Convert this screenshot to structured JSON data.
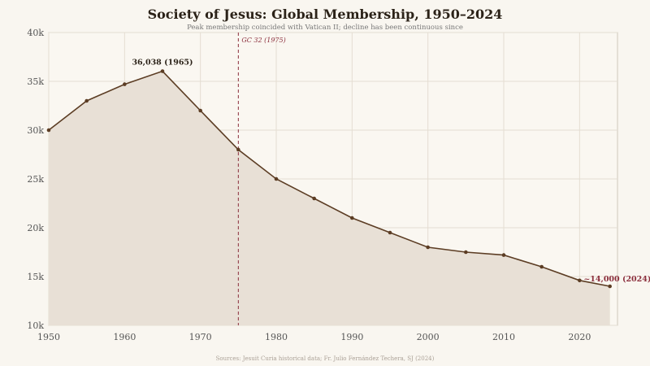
{
  "chart_data": {
    "type": "area",
    "title": "Society of Jesus: Global Membership, 1950–2024",
    "subtitle": "Peak membership coincided with Vatican II; decline has been continuous since",
    "source": "Sources: Jesuit Curia historical data; Fr. Julio Fernández Techera, SJ (2024)",
    "x": [
      1950,
      1955,
      1960,
      1965,
      1970,
      1975,
      1980,
      1985,
      1990,
      1995,
      2000,
      2005,
      2010,
      2015,
      2020,
      2024
    ],
    "values": [
      30000,
      33000,
      34700,
      36038,
      32000,
      28000,
      25000,
      23000,
      21000,
      19500,
      18000,
      17500,
      17200,
      16000,
      14600,
      14000
    ],
    "xlim": [
      1950,
      2025
    ],
    "ylim": [
      10000,
      40000
    ],
    "xticks": [
      "1950",
      "1960",
      "1970",
      "1980",
      "1990",
      "2000",
      "2010",
      "2020"
    ],
    "yticks": [
      "10k",
      "15k",
      "20k",
      "25k",
      "30k",
      "35k",
      "40k"
    ],
    "grid": true,
    "annotations": {
      "peak": {
        "x": 1965,
        "y": 36038,
        "text": "36,038 (1965)"
      },
      "latest": {
        "x": 2024,
        "y": 14000,
        "text": "~14,000 (2024)"
      },
      "vline": {
        "x": 1975,
        "text": "GC 32 (1975)"
      }
    },
    "colors": {
      "line": "#5c3d24",
      "fill": "#e8e0d6",
      "accent": "#8b2e3c",
      "background": "#f9f6f0"
    }
  }
}
